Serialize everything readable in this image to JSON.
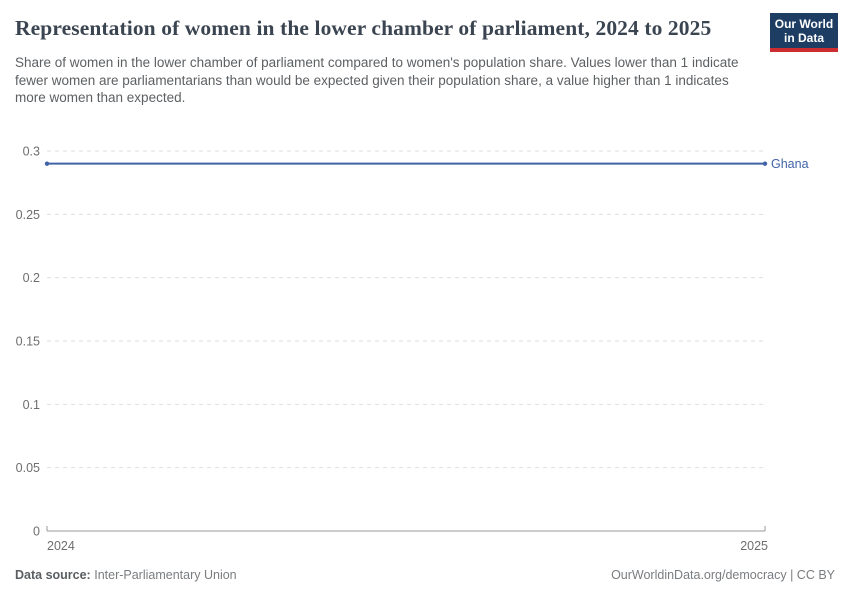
{
  "header": {
    "title": "Representation of women in the lower chamber of parliament, 2024 to 2025",
    "subtitle": "Share of women in the lower chamber of parliament compared to women's population share. Values lower than 1 indicate fewer women are parliamentarians than would be expected given their population share, a value higher than 1 indicates more women than expected.",
    "logo": {
      "line1": "Our World",
      "line2": "in Data"
    }
  },
  "chart_data": {
    "type": "line",
    "title": "Representation of women in the lower chamber of parliament, 2024 to 2025",
    "x": [
      2024,
      2025
    ],
    "xticklabels": [
      "2024",
      "2025"
    ],
    "series": [
      {
        "name": "Ghana",
        "values": [
          0.29,
          0.29
        ],
        "color": "#4063a8"
      }
    ],
    "xlabel": "",
    "ylabel": "",
    "ylim": [
      0,
      0.3
    ],
    "yticks": [
      0,
      0.05,
      0.1,
      0.15,
      0.2,
      0.25,
      0.3
    ],
    "grid": "horizontal-dashed",
    "legend": "end-of-line-label"
  },
  "footer": {
    "source_label": "Data source:",
    "source_value": "Inter-Parliamentary Union",
    "credit": "OurWorldinData.org/democracy | CC BY"
  },
  "colors": {
    "accent_line": "#4063a8",
    "logo_bg": "#1d3d63",
    "logo_bar": "#cb2d30",
    "gridline": "#dedede",
    "axis": "#9a9a9a",
    "tick_label": "#6e6e6e"
  }
}
